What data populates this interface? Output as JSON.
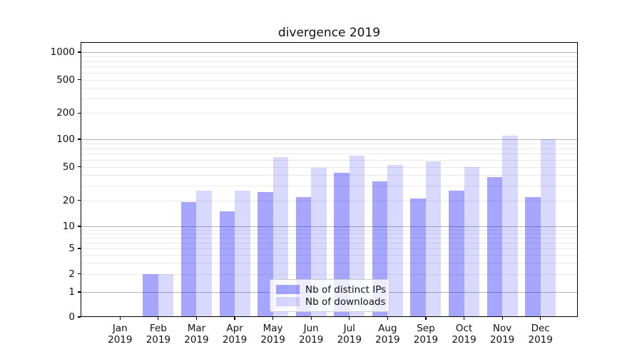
{
  "chart_data": {
    "type": "bar",
    "title": "divergence 2019",
    "x_tick_months": [
      "Jan",
      "Feb",
      "Mar",
      "Apr",
      "May",
      "Jun",
      "Jul",
      "Aug",
      "Sep",
      "Oct",
      "Nov",
      "Dec"
    ],
    "x_tick_year": "2019",
    "categories": [
      "Jan 2019",
      "Feb 2019",
      "Mar 2019",
      "Apr 2019",
      "May 2019",
      "Jun 2019",
      "Jul 2019",
      "Aug 2019",
      "Sep 2019",
      "Oct 2019",
      "Nov 2019",
      "Dec 2019"
    ],
    "series": [
      {
        "name": "Nb of distinct IPs",
        "color": "rgba(0,0,255,0.35)",
        "values": [
          0,
          2,
          19,
          15,
          25,
          22,
          43,
          34,
          21,
          26,
          38,
          22
        ]
      },
      {
        "name": "Nb of downloads",
        "color": "rgba(0,0,255,0.15)",
        "values": [
          0,
          2,
          26,
          26,
          64,
          49,
          66,
          53,
          58,
          50,
          110,
          100
        ]
      }
    ],
    "y_ticks": [
      0,
      1,
      2,
      5,
      10,
      20,
      50,
      100,
      200,
      500,
      1000
    ],
    "y_scale": "symlog",
    "ylim": [
      0,
      1300
    ],
    "grid": {
      "orientation": "horizontal",
      "major_values": [
        1,
        10,
        100,
        1000
      ],
      "major_color": "#b3b3b3",
      "minor_color": "#eaeaea"
    },
    "legend": {
      "position": "bottom-center",
      "entries": [
        "Nb of distinct IPs",
        "Nb of downloads"
      ]
    },
    "colors": {
      "bar_dark": "rgba(0,0,255,0.35)",
      "bar_light": "rgba(0,0,255,0.15)",
      "axis": "#000000",
      "background": "#ffffff"
    }
  }
}
